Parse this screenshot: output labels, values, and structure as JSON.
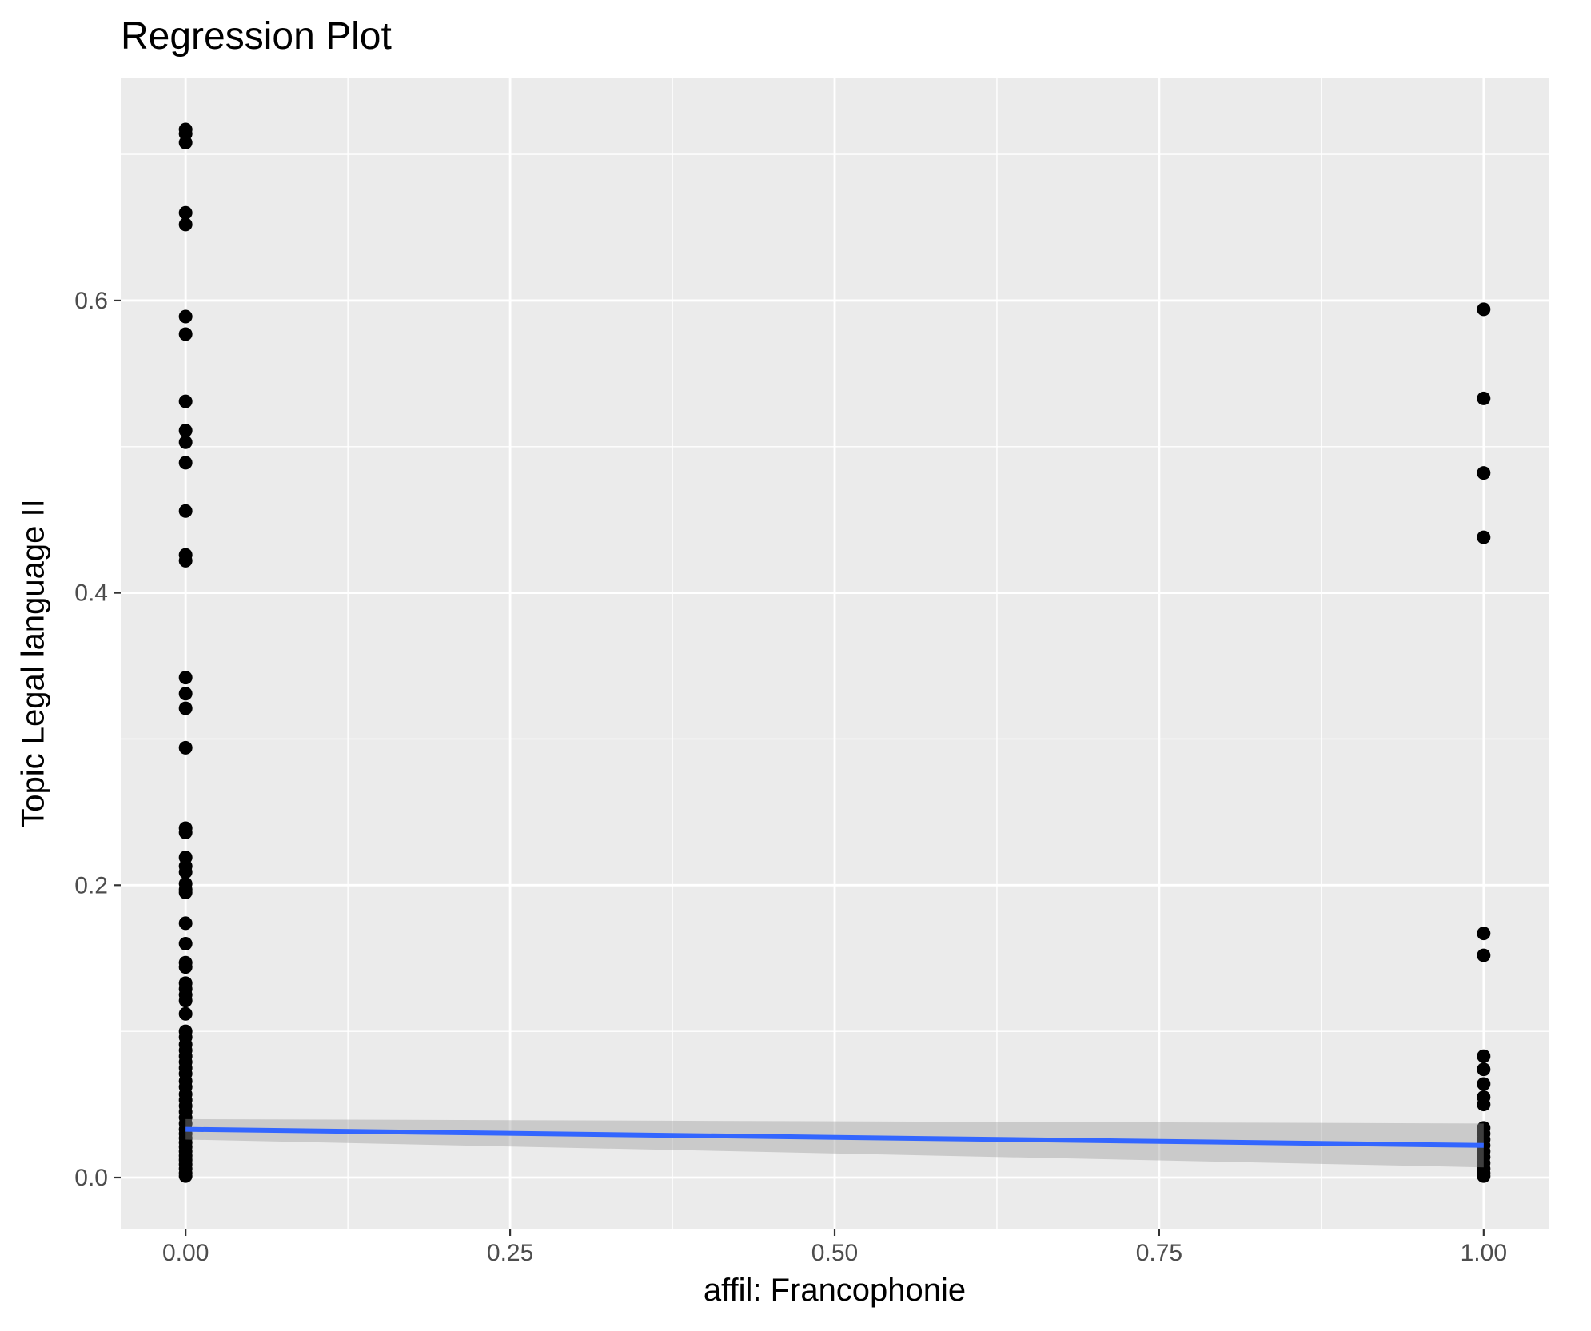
{
  "chart_data": {
    "type": "scatter",
    "title": "Regression Plot",
    "xlabel": "affil: Francophonie",
    "ylabel": "Topic Legal language II",
    "xlim": [
      -0.05,
      1.05
    ],
    "ylim": [
      -0.035,
      0.752
    ],
    "x_ticks": [
      0,
      0.25,
      0.5,
      0.75,
      1
    ],
    "x_tick_labels": [
      "0.00",
      "0.25",
      "0.50",
      "0.75",
      "1.00"
    ],
    "y_ticks": [
      0,
      0.2,
      0.4,
      0.6
    ],
    "y_tick_labels": [
      "0.0",
      "0.2",
      "0.4",
      "0.6"
    ],
    "grid": true,
    "background": "#ebebeb",
    "point_color": "#000000",
    "points": [
      {
        "x": 0,
        "y": 0.717
      },
      {
        "x": 0,
        "y": 0.714
      },
      {
        "x": 0,
        "y": 0.708
      },
      {
        "x": 0,
        "y": 0.66
      },
      {
        "x": 0,
        "y": 0.652
      },
      {
        "x": 0,
        "y": 0.589
      },
      {
        "x": 0,
        "y": 0.577
      },
      {
        "x": 0,
        "y": 0.531
      },
      {
        "x": 0,
        "y": 0.511
      },
      {
        "x": 0,
        "y": 0.503
      },
      {
        "x": 0,
        "y": 0.489
      },
      {
        "x": 0,
        "y": 0.456
      },
      {
        "x": 0,
        "y": 0.426
      },
      {
        "x": 0,
        "y": 0.422
      },
      {
        "x": 0,
        "y": 0.342
      },
      {
        "x": 0,
        "y": 0.331
      },
      {
        "x": 0,
        "y": 0.321
      },
      {
        "x": 0,
        "y": 0.294
      },
      {
        "x": 0,
        "y": 0.239
      },
      {
        "x": 0,
        "y": 0.236
      },
      {
        "x": 0,
        "y": 0.219
      },
      {
        "x": 0,
        "y": 0.213
      },
      {
        "x": 0,
        "y": 0.209
      },
      {
        "x": 0,
        "y": 0.201
      },
      {
        "x": 0,
        "y": 0.197
      },
      {
        "x": 0,
        "y": 0.195
      },
      {
        "x": 0,
        "y": 0.174
      },
      {
        "x": 0,
        "y": 0.16
      },
      {
        "x": 0,
        "y": 0.147
      },
      {
        "x": 0,
        "y": 0.144
      },
      {
        "x": 0,
        "y": 0.133
      },
      {
        "x": 0,
        "y": 0.129
      },
      {
        "x": 0,
        "y": 0.125
      },
      {
        "x": 0,
        "y": 0.121
      },
      {
        "x": 0,
        "y": 0.112
      },
      {
        "x": 0,
        "y": 0.1
      },
      {
        "x": 0,
        "y": 0.096
      },
      {
        "x": 0,
        "y": 0.091
      },
      {
        "x": 0,
        "y": 0.087
      },
      {
        "x": 0,
        "y": 0.083
      },
      {
        "x": 0,
        "y": 0.079
      },
      {
        "x": 0,
        "y": 0.075
      },
      {
        "x": 0,
        "y": 0.071
      },
      {
        "x": 0,
        "y": 0.066
      },
      {
        "x": 0,
        "y": 0.062
      },
      {
        "x": 0,
        "y": 0.057
      },
      {
        "x": 0,
        "y": 0.053
      },
      {
        "x": 0,
        "y": 0.049
      },
      {
        "x": 0,
        "y": 0.045
      },
      {
        "x": 0,
        "y": 0.041
      },
      {
        "x": 0,
        "y": 0.037
      },
      {
        "x": 0,
        "y": 0.033
      },
      {
        "x": 0,
        "y": 0.03
      },
      {
        "x": 0,
        "y": 0.027
      },
      {
        "x": 0,
        "y": 0.024
      },
      {
        "x": 0,
        "y": 0.021
      },
      {
        "x": 0,
        "y": 0.018
      },
      {
        "x": 0,
        "y": 0.015
      },
      {
        "x": 0,
        "y": 0.012
      },
      {
        "x": 0,
        "y": 0.009
      },
      {
        "x": 0,
        "y": 0.006
      },
      {
        "x": 0,
        "y": 0.003
      },
      {
        "x": 0,
        "y": 0.001
      },
      {
        "x": 1,
        "y": 0.594
      },
      {
        "x": 1,
        "y": 0.533
      },
      {
        "x": 1,
        "y": 0.482
      },
      {
        "x": 1,
        "y": 0.438
      },
      {
        "x": 1,
        "y": 0.167
      },
      {
        "x": 1,
        "y": 0.152
      },
      {
        "x": 1,
        "y": 0.083
      },
      {
        "x": 1,
        "y": 0.074
      },
      {
        "x": 1,
        "y": 0.064
      },
      {
        "x": 1,
        "y": 0.055
      },
      {
        "x": 1,
        "y": 0.05
      },
      {
        "x": 1,
        "y": 0.034
      },
      {
        "x": 1,
        "y": 0.03
      },
      {
        "x": 1,
        "y": 0.026
      },
      {
        "x": 1,
        "y": 0.022
      },
      {
        "x": 1,
        "y": 0.018
      },
      {
        "x": 1,
        "y": 0.014
      },
      {
        "x": 1,
        "y": 0.01
      },
      {
        "x": 1,
        "y": 0.006
      },
      {
        "x": 1,
        "y": 0.003
      },
      {
        "x": 1,
        "y": 0.001
      }
    ],
    "regression_line": {
      "color": "#3366ff",
      "x": [
        0,
        1
      ],
      "y": [
        0.033,
        0.022
      ],
      "ci_upper": [
        0.04,
        0.037
      ],
      "ci_lower": [
        0.026,
        0.007
      ],
      "ci_color": "#c8c8c8"
    }
  }
}
